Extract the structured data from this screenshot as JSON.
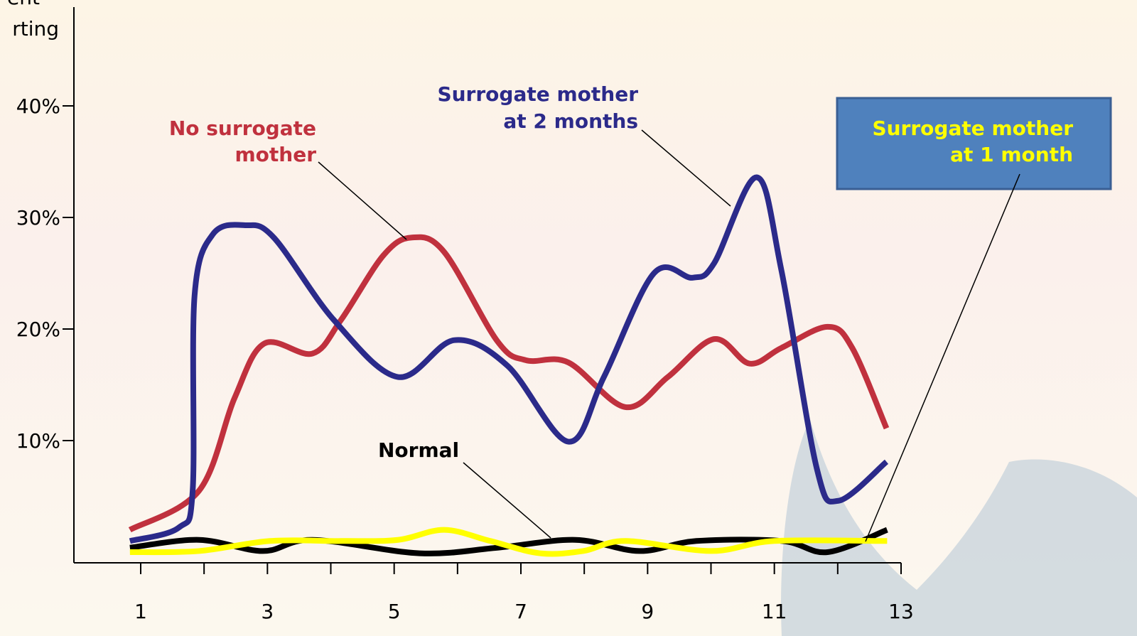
{
  "chart_data": {
    "type": "line",
    "y_axis_label": [
      "ent",
      "rting"
    ],
    "xlim": [
      0,
      13
    ],
    "xticks": [
      1,
      3,
      5,
      7,
      9,
      11,
      13
    ],
    "minor_xticks": [
      2,
      4,
      6,
      8,
      10,
      12
    ],
    "ylim": [
      -1,
      49
    ],
    "yticks": [
      {
        "value": 10,
        "label": "10%"
      },
      {
        "value": 20,
        "label": "20%"
      },
      {
        "value": 30,
        "label": "30%"
      },
      {
        "value": 40,
        "label": "40%"
      }
    ],
    "series": [
      {
        "name": [
          "No surrogate",
          "mother"
        ],
        "color": "#c0313e",
        "x": [
          0.83,
          1.92,
          2.48,
          2.95,
          3.71,
          4.16,
          4.83,
          5.28,
          5.79,
          6.63,
          7.08,
          7.75,
          8.65,
          9.32,
          10.05,
          10.61,
          11.11,
          11.84,
          12.23,
          12.77
        ],
        "values": [
          2.0,
          5.5,
          13.8,
          18.7,
          17.8,
          20.8,
          26.6,
          28.2,
          26.9,
          18.9,
          17.2,
          17.0,
          13.0,
          15.7,
          19.1,
          16.9,
          18.3,
          20.2,
          18.3,
          11.1
        ]
      },
      {
        "name": [
          "Surrogate mother",
          "at 2 months"
        ],
        "color": "#2b2a8a",
        "x": [
          0.83,
          1.6,
          1.82,
          1.85,
          2.14,
          2.65,
          3.1,
          4.05,
          5.06,
          5.95,
          6.79,
          7.75,
          8.31,
          9.1,
          9.71,
          10.05,
          10.72,
          11.11,
          11.67,
          12.01,
          12.77
        ],
        "values": [
          1.0,
          2.2,
          5.5,
          23.0,
          28.5,
          29.3,
          28.2,
          20.8,
          15.7,
          19.0,
          16.7,
          9.9,
          15.7,
          25.0,
          24.6,
          25.9,
          33.6,
          25.3,
          7.5,
          4.6,
          8.1
        ]
      },
      {
        "name": [
          "Normal"
        ],
        "color": "#000000",
        "x": [
          0.83,
          1.92,
          2.93,
          3.71,
          5.4,
          6.63,
          7.86,
          8.87,
          9.77,
          11.12,
          11.84,
          12.78
        ],
        "values": [
          0.4,
          1.1,
          0.1,
          1.1,
          -0.1,
          0.4,
          1.1,
          0.1,
          1.0,
          1.0,
          0,
          2.0
        ]
      },
      {
        "name": [
          "Surrogate mother",
          "at 1 month"
        ],
        "color": "#ffff00",
        "x": [
          0.83,
          1.92,
          3.04,
          4.16,
          5.06,
          5.79,
          6.52,
          7.3,
          7.98,
          8.65,
          10.0,
          11.0,
          12.78
        ],
        "values": [
          0,
          0.1,
          1.0,
          1.0,
          1.1,
          2.0,
          1.0,
          -0.1,
          0.1,
          1.0,
          0.1,
          1.0,
          1.0
        ]
      }
    ]
  }
}
